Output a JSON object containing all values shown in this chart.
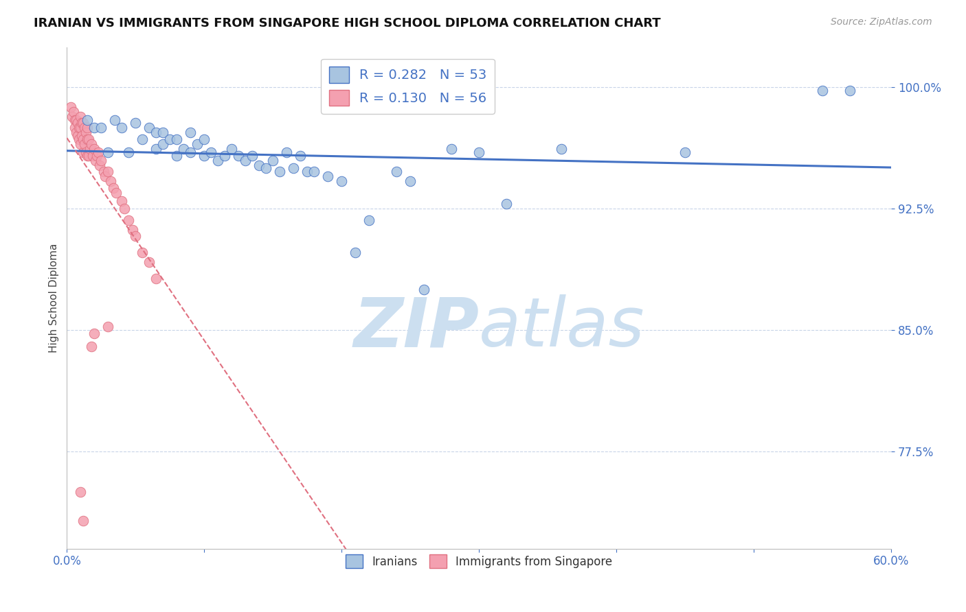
{
  "title": "IRANIAN VS IMMIGRANTS FROM SINGAPORE HIGH SCHOOL DIPLOMA CORRELATION CHART",
  "source": "Source: ZipAtlas.com",
  "ylabel": "High School Diploma",
  "xlabel": "",
  "xlim": [
    0.0,
    0.6
  ],
  "ylim": [
    0.715,
    1.025
  ],
  "yticks": [
    0.775,
    0.85,
    0.925,
    1.0
  ],
  "ytick_labels": [
    "77.5%",
    "85.0%",
    "92.5%",
    "100.0%"
  ],
  "xticks": [
    0.0,
    0.1,
    0.2,
    0.3,
    0.4,
    0.5,
    0.6
  ],
  "xtick_labels": [
    "0.0%",
    "",
    "",
    "",
    "",
    "",
    "60.0%"
  ],
  "iranians_x": [
    0.015,
    0.02,
    0.025,
    0.03,
    0.035,
    0.04,
    0.045,
    0.05,
    0.055,
    0.06,
    0.065,
    0.065,
    0.07,
    0.07,
    0.075,
    0.08,
    0.08,
    0.085,
    0.09,
    0.09,
    0.095,
    0.1,
    0.1,
    0.105,
    0.11,
    0.115,
    0.12,
    0.125,
    0.13,
    0.135,
    0.14,
    0.145,
    0.15,
    0.155,
    0.16,
    0.165,
    0.17,
    0.175,
    0.18,
    0.19,
    0.2,
    0.21,
    0.22,
    0.24,
    0.25,
    0.26,
    0.28,
    0.3,
    0.32,
    0.36,
    0.45,
    0.55,
    0.57
  ],
  "iranians_y": [
    0.98,
    0.975,
    0.975,
    0.96,
    0.98,
    0.975,
    0.96,
    0.978,
    0.968,
    0.975,
    0.972,
    0.962,
    0.972,
    0.965,
    0.968,
    0.968,
    0.958,
    0.962,
    0.972,
    0.96,
    0.965,
    0.968,
    0.958,
    0.96,
    0.955,
    0.958,
    0.962,
    0.958,
    0.955,
    0.958,
    0.952,
    0.95,
    0.955,
    0.948,
    0.96,
    0.95,
    0.958,
    0.948,
    0.948,
    0.945,
    0.942,
    0.898,
    0.918,
    0.948,
    0.942,
    0.875,
    0.962,
    0.96,
    0.928,
    0.962,
    0.96,
    0.998,
    0.998
  ],
  "singapore_x": [
    0.003,
    0.004,
    0.005,
    0.006,
    0.006,
    0.007,
    0.007,
    0.008,
    0.008,
    0.009,
    0.009,
    0.01,
    0.01,
    0.01,
    0.011,
    0.011,
    0.012,
    0.012,
    0.012,
    0.013,
    0.013,
    0.014,
    0.014,
    0.015,
    0.015,
    0.015,
    0.016,
    0.016,
    0.017,
    0.018,
    0.019,
    0.02,
    0.021,
    0.022,
    0.023,
    0.024,
    0.025,
    0.027,
    0.028,
    0.03,
    0.032,
    0.034,
    0.036,
    0.04,
    0.042,
    0.045,
    0.048,
    0.05,
    0.055,
    0.06,
    0.065,
    0.03,
    0.02,
    0.018,
    0.01,
    0.012
  ],
  "singapore_y": [
    0.988,
    0.982,
    0.985,
    0.98,
    0.975,
    0.98,
    0.972,
    0.978,
    0.97,
    0.975,
    0.968,
    0.982,
    0.975,
    0.965,
    0.978,
    0.97,
    0.978,
    0.968,
    0.96,
    0.975,
    0.965,
    0.972,
    0.96,
    0.975,
    0.968,
    0.958,
    0.968,
    0.958,
    0.962,
    0.965,
    0.958,
    0.962,
    0.955,
    0.958,
    0.96,
    0.952,
    0.955,
    0.948,
    0.945,
    0.948,
    0.942,
    0.938,
    0.935,
    0.93,
    0.925,
    0.918,
    0.912,
    0.908,
    0.898,
    0.892,
    0.882,
    0.852,
    0.848,
    0.84,
    0.75,
    0.732
  ],
  "R_iranians": 0.282,
  "N_iranians": 53,
  "R_singapore": 0.13,
  "N_singapore": 56,
  "color_iranians": "#a8c4e0",
  "color_singapore": "#f4a0b0",
  "color_line_iranians": "#4472c4",
  "color_line_singapore": "#e07080",
  "color_axis": "#4472c4",
  "watermark_zip": "ZIP",
  "watermark_atlas": "atlas",
  "watermark_color": "#ccdff0",
  "grid_color": "#c8d4e8",
  "background_color": "#ffffff",
  "title_fontsize": 13,
  "source_fontsize": 10,
  "tick_fontsize": 12,
  "ylabel_fontsize": 11
}
